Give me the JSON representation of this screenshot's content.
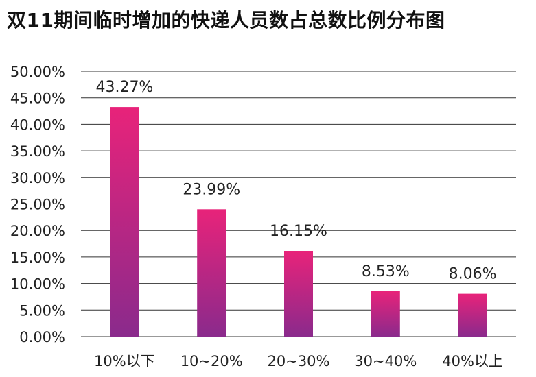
{
  "chart_data": {
    "type": "bar",
    "title": "双11期间临时增加的快递人员数占总数比例分布图",
    "categories": [
      "10%以下",
      "10~20%",
      "20~30%",
      "30~40%",
      "40%以上"
    ],
    "values": [
      43.27,
      23.99,
      16.15,
      8.53,
      8.06
    ],
    "data_labels": [
      "43.27%",
      "23.99%",
      "16.15%",
      "8.53%",
      "8.06%"
    ],
    "yticks": [
      "0.00%",
      "5.00%",
      "10.00%",
      "15.00%",
      "20.00%",
      "25.00%",
      "30.00%",
      "35.00%",
      "40.00%",
      "45.00%",
      "50.00%"
    ],
    "ylim": [
      0,
      50
    ],
    "xlabel": "",
    "ylabel": "",
    "grid": true,
    "colors": {
      "bar_top": "#e8237a",
      "bar_bottom": "#8a2a8c",
      "grid": "#333333"
    }
  }
}
